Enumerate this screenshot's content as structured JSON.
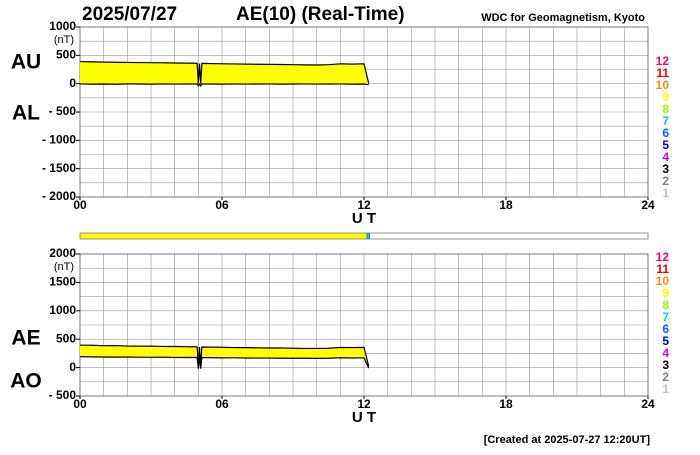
{
  "title": "2025/07/27",
  "subtitle": "AE(10) (Real-Time)",
  "source": "WDC for Geomagnetism, Kyoto",
  "footer": "[Created at 2025-07-27 12:20UT]",
  "hour_legend": {
    "labels": [
      "12",
      "11",
      "10",
      "9",
      "8",
      "7",
      "6",
      "5",
      "4",
      "3",
      "2",
      "1"
    ],
    "colors": [
      "#ff0066",
      "#ff0000",
      "#ff8c00",
      "#ffff00",
      "#99ff00",
      "#00ccff",
      "#0066ff",
      "#0000cc",
      "#cc00ff",
      "#000000",
      "#808080",
      "#c0c0c0"
    ]
  },
  "strip": {
    "xlim": [
      0,
      24
    ],
    "segments": [
      {
        "start": 0,
        "end": 12.1,
        "color": "#ffff00"
      },
      {
        "start": 12.1,
        "end": 12.2,
        "color": "#00cc66"
      },
      {
        "start": 12.2,
        "end": 12.25,
        "color": "#3366ff"
      }
    ]
  },
  "chart_data": [
    {
      "type": "area-band",
      "xlabel": "U T",
      "y_unit": "(nT)",
      "fill_color": "#ffff00",
      "grid": true,
      "x_grid_step": 1,
      "y_grid_step": 250,
      "xlim": [
        0,
        24
      ],
      "xticks": [
        {
          "value": 0,
          "label": "00"
        },
        {
          "value": 6,
          "label": "06"
        },
        12,
        18,
        24
      ],
      "ylim": [
        -2000,
        1000
      ],
      "yticks": [
        1000,
        500,
        0,
        {
          "value": -500,
          "label": "- 500"
        },
        {
          "value": -1000,
          "label": "- 1000"
        },
        {
          "value": -1500,
          "label": "- 1500"
        },
        {
          "value": -2000,
          "label": "- 2000"
        }
      ],
      "x": [
        0,
        0.5,
        1,
        1.5,
        2,
        2.5,
        3,
        3.5,
        4,
        4.5,
        4.95,
        5.0,
        5.05,
        5.1,
        5.15,
        5.5,
        6,
        6.5,
        7,
        7.5,
        8,
        8.5,
        9,
        9.5,
        10,
        10.5,
        11,
        11.5,
        12,
        12.2
      ],
      "series": [
        {
          "name": "AU",
          "color": "#000000",
          "values": [
            390,
            385,
            380,
            378,
            375,
            372,
            370,
            368,
            365,
            362,
            360,
            0,
            355,
            0,
            358,
            355,
            350,
            348,
            345,
            342,
            340,
            338,
            335,
            332,
            330,
            335,
            350,
            345,
            350,
            0
          ]
        },
        {
          "name": "AL",
          "color": "#000000",
          "values": [
            -5,
            -8,
            -6,
            -10,
            -4,
            -6,
            -8,
            -5,
            -7,
            -6,
            -5,
            -40,
            -6,
            -40,
            -5,
            -6,
            -8,
            -5,
            -7,
            -6,
            -5,
            -8,
            -6,
            -5,
            -7,
            -6,
            -5,
            -8,
            -6,
            -20
          ]
        }
      ]
    },
    {
      "type": "area-band",
      "xlabel": "U T",
      "y_unit": "(nT)",
      "fill_color": "#ffff00",
      "grid": true,
      "x_grid_step": 1,
      "y_grid_step": 250,
      "xlim": [
        0,
        24
      ],
      "xticks": [
        {
          "value": 0,
          "label": "00"
        },
        {
          "value": 6,
          "label": "06"
        },
        12,
        18,
        24
      ],
      "ylim": [
        -500,
        2000
      ],
      "yticks": [
        2000,
        1500,
        1000,
        500,
        0,
        {
          "value": -500,
          "label": "- 500"
        }
      ],
      "x": [
        0,
        0.5,
        1,
        1.5,
        2,
        2.5,
        3,
        3.5,
        4,
        4.5,
        4.95,
        5.0,
        5.05,
        5.1,
        5.15,
        5.5,
        6,
        6.5,
        7,
        7.5,
        8,
        8.5,
        9,
        9.5,
        10,
        10.5,
        11,
        11.5,
        12,
        12.2
      ],
      "series": [
        {
          "name": "AE",
          "color": "#000000",
          "values": [
            395,
            393,
            386,
            388,
            379,
            378,
            378,
            373,
            372,
            368,
            365,
            40,
            361,
            40,
            363,
            361,
            358,
            353,
            352,
            348,
            345,
            346,
            341,
            337,
            337,
            341,
            355,
            353,
            356,
            20
          ]
        },
        {
          "name": "AO",
          "color": "#000000",
          "values": [
            193,
            189,
            187,
            184,
            186,
            183,
            181,
            182,
            179,
            178,
            178,
            -20,
            175,
            -20,
            177,
            175,
            171,
            172,
            169,
            168,
            168,
            165,
            165,
            164,
            162,
            165,
            173,
            169,
            172,
            -10
          ]
        }
      ]
    }
  ]
}
